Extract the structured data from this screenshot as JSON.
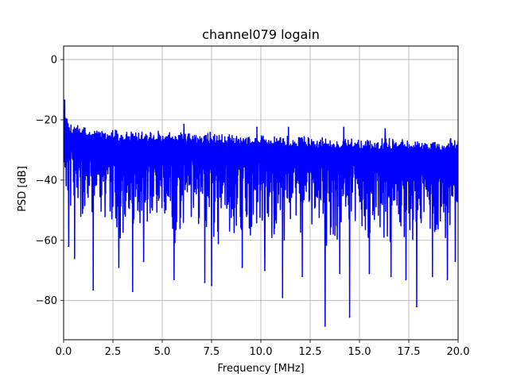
{
  "chart_data": {
    "type": "line",
    "title": "channel079 logain",
    "xlabel": "Frequency [MHz]",
    "ylabel": "PSD [dB]",
    "xlim": [
      0,
      20
    ],
    "ylim": [
      -93,
      4.5
    ],
    "xticks": [
      0.0,
      2.5,
      5.0,
      7.5,
      10.0,
      12.5,
      15.0,
      17.5,
      20.0
    ],
    "xtick_labels": [
      "0.0",
      "2.5",
      "5.0",
      "7.5",
      "10.0",
      "12.5",
      "15.0",
      "17.5",
      "20.0"
    ],
    "yticks": [
      0,
      -20,
      -40,
      -60,
      -80
    ],
    "ytick_labels": [
      "0",
      "−20",
      "−40",
      "−60",
      "−80"
    ],
    "grid": true,
    "color": "#0000ff",
    "series": [
      {
        "upper_envelope": {
          "x": [
            0.0,
            0.1,
            0.3,
            0.5,
            1.0,
            1.5,
            2.0,
            2.5,
            3.0,
            4.0,
            5.0,
            6.0,
            7.0,
            8.0,
            9.0,
            10.0,
            11.0,
            12.0,
            13.0,
            14.0,
            15.0,
            16.0,
            17.0,
            18.0,
            19.0,
            20.0
          ],
          "y": [
            -13.5,
            -16.5,
            -20,
            -21,
            -22,
            -22.5,
            -23,
            -23,
            -23.5,
            -23.5,
            -23.5,
            -23.5,
            -24,
            -24,
            -24.5,
            -24.5,
            -25,
            -25,
            -25.5,
            -25.5,
            -26,
            -26,
            -26,
            -26.5,
            -26.5,
            -26
          ]
        },
        "lower_envelope": {
          "x": [
            0.0,
            0.5,
            1.0,
            2.0,
            3.0,
            4.0,
            5.0,
            6.0,
            7.0,
            8.0,
            9.0,
            10.0,
            11.0,
            12.0,
            13.0,
            14.0,
            15.0,
            16.0,
            17.0,
            18.0,
            19.0,
            20.0
          ],
          "y": [
            -47,
            -55,
            -58,
            -59,
            -60,
            -60,
            -61,
            -61,
            -61,
            -62,
            -62,
            -62,
            -62,
            -62,
            -62,
            -62,
            -62,
            -62,
            -62,
            -62,
            -62,
            -62
          ]
        },
        "dips": [
          {
            "x": 0.25,
            "y": -62
          },
          {
            "x": 0.55,
            "y": -66
          },
          {
            "x": 1.5,
            "y": -76.5
          },
          {
            "x": 2.8,
            "y": -69
          },
          {
            "x": 3.5,
            "y": -77
          },
          {
            "x": 4.05,
            "y": -67
          },
          {
            "x": 5.6,
            "y": -73
          },
          {
            "x": 7.15,
            "y": -74
          },
          {
            "x": 7.5,
            "y": -75
          },
          {
            "x": 9.05,
            "y": -69
          },
          {
            "x": 10.2,
            "y": -70
          },
          {
            "x": 11.1,
            "y": -79
          },
          {
            "x": 12.1,
            "y": -72
          },
          {
            "x": 13.25,
            "y": -88.5
          },
          {
            "x": 14.0,
            "y": -71
          },
          {
            "x": 14.5,
            "y": -85.5
          },
          {
            "x": 15.5,
            "y": -71
          },
          {
            "x": 16.6,
            "y": -72
          },
          {
            "x": 17.35,
            "y": -73
          },
          {
            "x": 17.9,
            "y": -82
          },
          {
            "x": 18.7,
            "y": -72
          },
          {
            "x": 19.45,
            "y": -73
          },
          {
            "x": 19.85,
            "y": -67
          }
        ],
        "peaks": [
          {
            "x": 0.05,
            "y": -13.5
          },
          {
            "x": 6.1,
            "y": -21.5
          },
          {
            "x": 9.8,
            "y": -22.5
          },
          {
            "x": 11.4,
            "y": -22.5
          },
          {
            "x": 14.2,
            "y": -22.5
          },
          {
            "x": 16.3,
            "y": -23.0
          }
        ]
      }
    ]
  }
}
